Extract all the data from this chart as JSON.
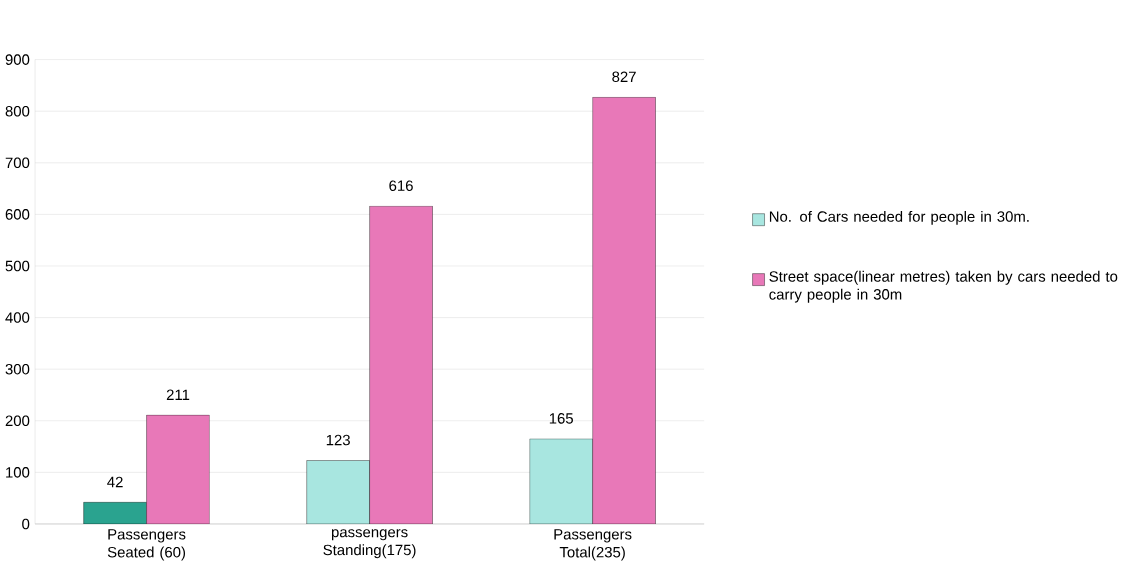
{
  "chart_data": {
    "type": "bar",
    "categories": [
      "Passengers Seated (60)",
      "passengers Standing(175)",
      "Passengers Total(235)"
    ],
    "series": [
      {
        "name": "No. of Cars needed for people in 30m.",
        "color": "#a8e6e0",
        "colors": [
          "#2aa38f",
          "#a8e6e0",
          "#a8e6e0"
        ],
        "values": [
          42,
          123,
          165
        ]
      },
      {
        "name": "Street space(linear metres) taken by cars needed to carry people in 30m",
        "color": "#e878b8",
        "values": [
          211,
          616,
          827
        ]
      }
    ],
    "ylim": [
      0,
      900
    ],
    "yticks": [
      0,
      100,
      200,
      300,
      400,
      500,
      600,
      700,
      800,
      900
    ],
    "grid": "y",
    "legend": "right",
    "data_labels": true
  }
}
